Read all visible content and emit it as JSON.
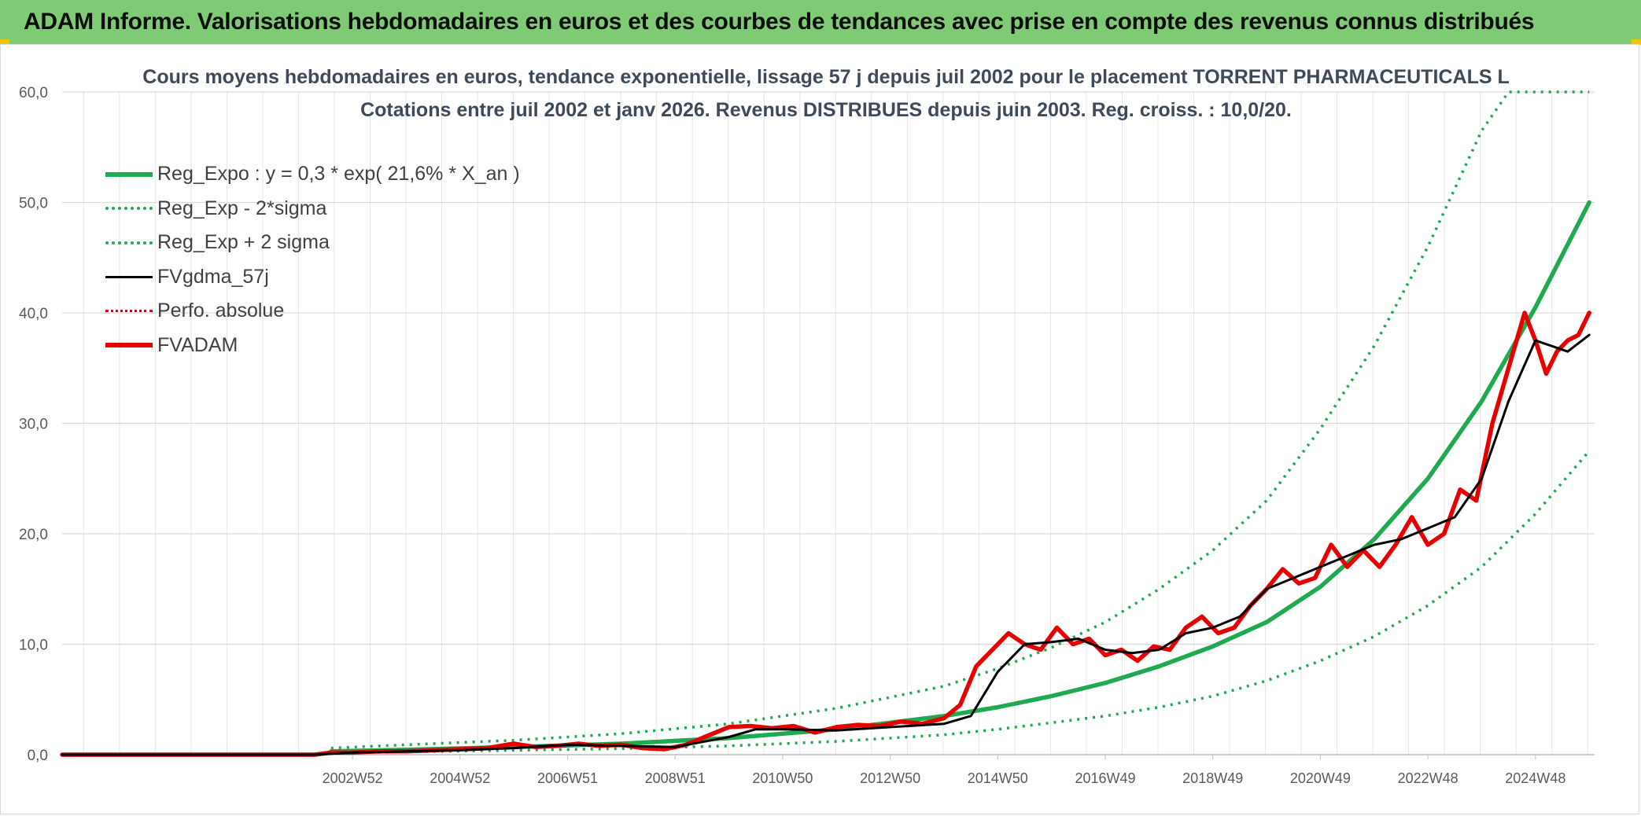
{
  "banner": {
    "title": "ADAM Informe. Valorisations hebdomadaires en euros et des courbes de tendances avec prise en compte des revenus connus distribués"
  },
  "colors": {
    "banner": "#7fcb75",
    "reg_green": "#1faa4f",
    "fvgdma": "#000000",
    "fvadam": "#e60000",
    "grid": "#d9d9d9"
  },
  "chart_data": {
    "type": "line",
    "title": "Cours moyens hebdomadaires en euros, tendance exponentielle, lissage 57 j depuis juil 2002 pour le placement TORRENT PHARMACEUTICALS L",
    "subtitle": "Cotations entre juil 2002 et janv 2026. Revenus DISTRIBUES depuis juin 2003. Reg. croiss. : 10,0/20.",
    "xlabel": "",
    "ylabel": "",
    "ylim": [
      0,
      60
    ],
    "yticks": [
      "0,0",
      "10,0",
      "20,0",
      "30,0",
      "40,0",
      "50,0",
      "60,0"
    ],
    "xlim": [
      1997.6,
      2026.1
    ],
    "xticks": [
      {
        "label": "2002W52",
        "x": 2003.0
      },
      {
        "label": "2004W52",
        "x": 2005.0
      },
      {
        "label": "2006W51",
        "x": 2007.0
      },
      {
        "label": "2008W51",
        "x": 2009.0
      },
      {
        "label": "2010W50",
        "x": 2011.0
      },
      {
        "label": "2012W50",
        "x": 2013.0
      },
      {
        "label": "2014W50",
        "x": 2015.0
      },
      {
        "label": "2016W49",
        "x": 2017.0
      },
      {
        "label": "2018W49",
        "x": 2019.0
      },
      {
        "label": "2020W49",
        "x": 2021.0
      },
      {
        "label": "2022W48",
        "x": 2023.0
      },
      {
        "label": "2024W48",
        "x": 2025.0
      }
    ],
    "legend_position": "top-left",
    "series": [
      {
        "name": "Reg_Expo : y = 0,3 * exp( 21,6% *  X_an )",
        "style": "solid-thick",
        "color": "#1faa4f",
        "x": [
          2002.6,
          2004,
          2006,
          2008,
          2010,
          2012,
          2014,
          2015,
          2016,
          2017,
          2018,
          2019,
          2020,
          2021,
          2022,
          2023,
          2024,
          2025,
          2026.0
        ],
        "y": [
          0.3,
          0.45,
          0.7,
          1.0,
          1.5,
          2.3,
          3.5,
          4.3,
          5.3,
          6.5,
          8.0,
          9.8,
          12.0,
          15.2,
          19.5,
          25.0,
          32.0,
          40.5,
          50.0
        ]
      },
      {
        "name": "Reg_Exp - 2*sigma",
        "style": "dotted",
        "color": "#1faa4f",
        "x": [
          2002.6,
          2004,
          2006,
          2008,
          2010,
          2012,
          2014,
          2015,
          2016,
          2017,
          2018,
          2019,
          2020,
          2021,
          2022,
          2023,
          2024,
          2025,
          2026.0
        ],
        "y": [
          0.15,
          0.25,
          0.4,
          0.55,
          0.8,
          1.2,
          1.8,
          2.3,
          2.9,
          3.5,
          4.3,
          5.3,
          6.7,
          8.5,
          10.7,
          13.5,
          17.0,
          21.8,
          27.5
        ]
      },
      {
        "name": "Reg_Exp + 2 sigma",
        "style": "dotted",
        "color": "#1faa4f",
        "x": [
          2002.6,
          2004,
          2006,
          2008,
          2010,
          2012,
          2014,
          2015,
          2016,
          2017,
          2018,
          2019,
          2020,
          2021,
          2022,
          2023,
          2024,
          2024.5,
          2026.0
        ],
        "y": [
          0.6,
          0.9,
          1.3,
          1.9,
          2.8,
          4.2,
          6.2,
          7.8,
          9.7,
          12.0,
          15.0,
          18.5,
          23.0,
          29.5,
          37.0,
          46.0,
          56.5,
          60.0,
          60.0
        ]
      },
      {
        "name": "FVgdma_57j",
        "style": "solid",
        "color": "#000000",
        "x": [
          1997.6,
          2002.3,
          2003,
          2004,
          2005,
          2006,
          2007,
          2008,
          2009,
          2010,
          2010.5,
          2011,
          2012,
          2013,
          2014,
          2014.5,
          2015,
          2015.5,
          2016,
          2016.5,
          2017,
          2017.5,
          2018,
          2018.5,
          2019,
          2019.5,
          2020,
          2020.5,
          2021,
          2021.5,
          2022,
          2022.5,
          2023,
          2023.5,
          2024,
          2024.5,
          2025,
          2025.3,
          2025.6,
          2026.0
        ],
        "y": [
          0,
          0,
          0.2,
          0.3,
          0.4,
          0.6,
          0.9,
          0.8,
          0.7,
          1.6,
          2.3,
          2.3,
          2.2,
          2.5,
          2.8,
          3.5,
          7.5,
          10.0,
          10.2,
          10.5,
          9.5,
          9.2,
          9.5,
          11.0,
          11.5,
          12.5,
          15.0,
          16.0,
          17.0,
          18.0,
          19.0,
          19.5,
          20.5,
          21.5,
          25.0,
          32.0,
          37.5,
          37.0,
          36.5,
          38.0
        ]
      },
      {
        "name": "Perfo. absolue",
        "style": "dotted",
        "color": "#e60000",
        "x": [],
        "y": []
      },
      {
        "name": "FVADAM",
        "style": "solid-thick",
        "color": "#e60000",
        "x": [
          1997.6,
          2002.3,
          2002.6,
          2003,
          2003.5,
          2004,
          2004.5,
          2005,
          2005.5,
          2006,
          2006.4,
          2006.8,
          2007.2,
          2007.6,
          2008,
          2008.4,
          2008.8,
          2009.2,
          2009.6,
          2010,
          2010.4,
          2010.8,
          2011.2,
          2011.6,
          2012,
          2012.4,
          2012.8,
          2013.2,
          2013.6,
          2014,
          2014.3,
          2014.6,
          2014.9,
          2015.2,
          2015.5,
          2015.8,
          2016.1,
          2016.4,
          2016.7,
          2017,
          2017.3,
          2017.6,
          2017.9,
          2018.2,
          2018.5,
          2018.8,
          2019.1,
          2019.4,
          2019.7,
          2020,
          2020.3,
          2020.6,
          2020.9,
          2021.2,
          2021.5,
          2021.8,
          2022.1,
          2022.4,
          2022.7,
          2023,
          2023.3,
          2023.6,
          2023.9,
          2024.2,
          2024.5,
          2024.8,
          2025.0,
          2025.2,
          2025.4,
          2025.6,
          2025.8,
          2026.0
        ],
        "y": [
          0,
          0,
          0.2,
          0.2,
          0.3,
          0.3,
          0.4,
          0.5,
          0.6,
          1.0,
          0.7,
          0.8,
          1.0,
          0.8,
          0.9,
          0.6,
          0.5,
          0.9,
          1.7,
          2.5,
          2.6,
          2.4,
          2.6,
          2.0,
          2.5,
          2.7,
          2.6,
          3.0,
          2.8,
          3.3,
          4.5,
          8.0,
          9.5,
          11.0,
          10.0,
          9.5,
          11.5,
          10.0,
          10.5,
          9.0,
          9.5,
          8.5,
          9.8,
          9.5,
          11.5,
          12.5,
          11.0,
          11.5,
          13.5,
          15.0,
          16.8,
          15.5,
          16.0,
          19.0,
          17.0,
          18.5,
          17.0,
          19.0,
          21.5,
          19.0,
          20.0,
          24.0,
          23.0,
          30.0,
          35.0,
          40.0,
          37.5,
          34.5,
          36.5,
          37.5,
          38.0,
          40.0
        ]
      }
    ]
  }
}
